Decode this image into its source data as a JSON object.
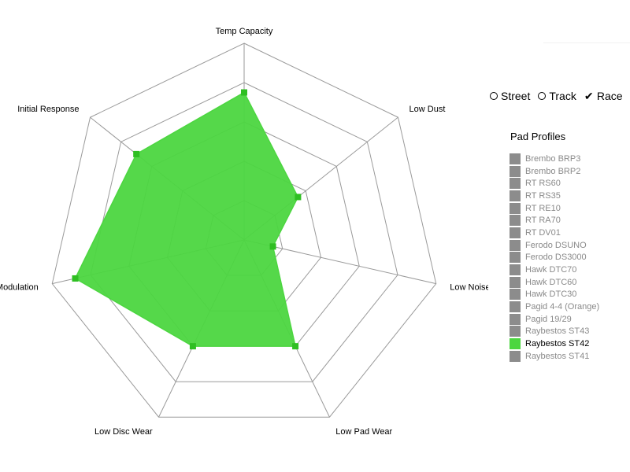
{
  "chart_data": {
    "type": "radar",
    "axes": [
      "Temp Capacity",
      "Low Dust",
      "Low Noise",
      "Low Pad Wear",
      "Low Disc Wear",
      "Modulation",
      "Initial Response"
    ],
    "levels": 5,
    "max": 10,
    "series": [
      {
        "name": "Raybestos ST42",
        "values": [
          7.5,
          3.5,
          1.5,
          6,
          6,
          8.8,
          7
        ],
        "color": "#4cd640",
        "fill_opacity": 0.95
      }
    ],
    "grid": true
  },
  "modes": [
    {
      "label": "Street",
      "selected": false
    },
    {
      "label": "Track",
      "selected": false
    },
    {
      "label": "Race",
      "selected": true
    }
  ],
  "profiles_title": "Pad Profiles",
  "profiles": [
    {
      "label": "Brembo BRP3",
      "active": false
    },
    {
      "label": "Brembo BRP2",
      "active": false
    },
    {
      "label": "RT RS60",
      "active": false
    },
    {
      "label": "RT RS35",
      "active": false
    },
    {
      "label": "RT RE10",
      "active": false
    },
    {
      "label": "RT RA70",
      "active": false
    },
    {
      "label": "RT DV01",
      "active": false
    },
    {
      "label": "Ferodo DSUNO",
      "active": false
    },
    {
      "label": "Ferodo DS3000",
      "active": false
    },
    {
      "label": "Hawk DTC70",
      "active": false
    },
    {
      "label": "Hawk DTC60",
      "active": false
    },
    {
      "label": "Hawk DTC30",
      "active": false
    },
    {
      "label": "Pagid 4-4 (Orange)",
      "active": false
    },
    {
      "label": "Pagid 19/29",
      "active": false
    },
    {
      "label": "Raybestos ST43",
      "active": false
    },
    {
      "label": "Raybestos ST42",
      "active": true
    },
    {
      "label": "Raybestos ST41",
      "active": false
    }
  ],
  "colors": {
    "inactive_swatch": "#8c8c8c",
    "active_swatch": "#4cd640",
    "grid": "#9a9a9a"
  }
}
